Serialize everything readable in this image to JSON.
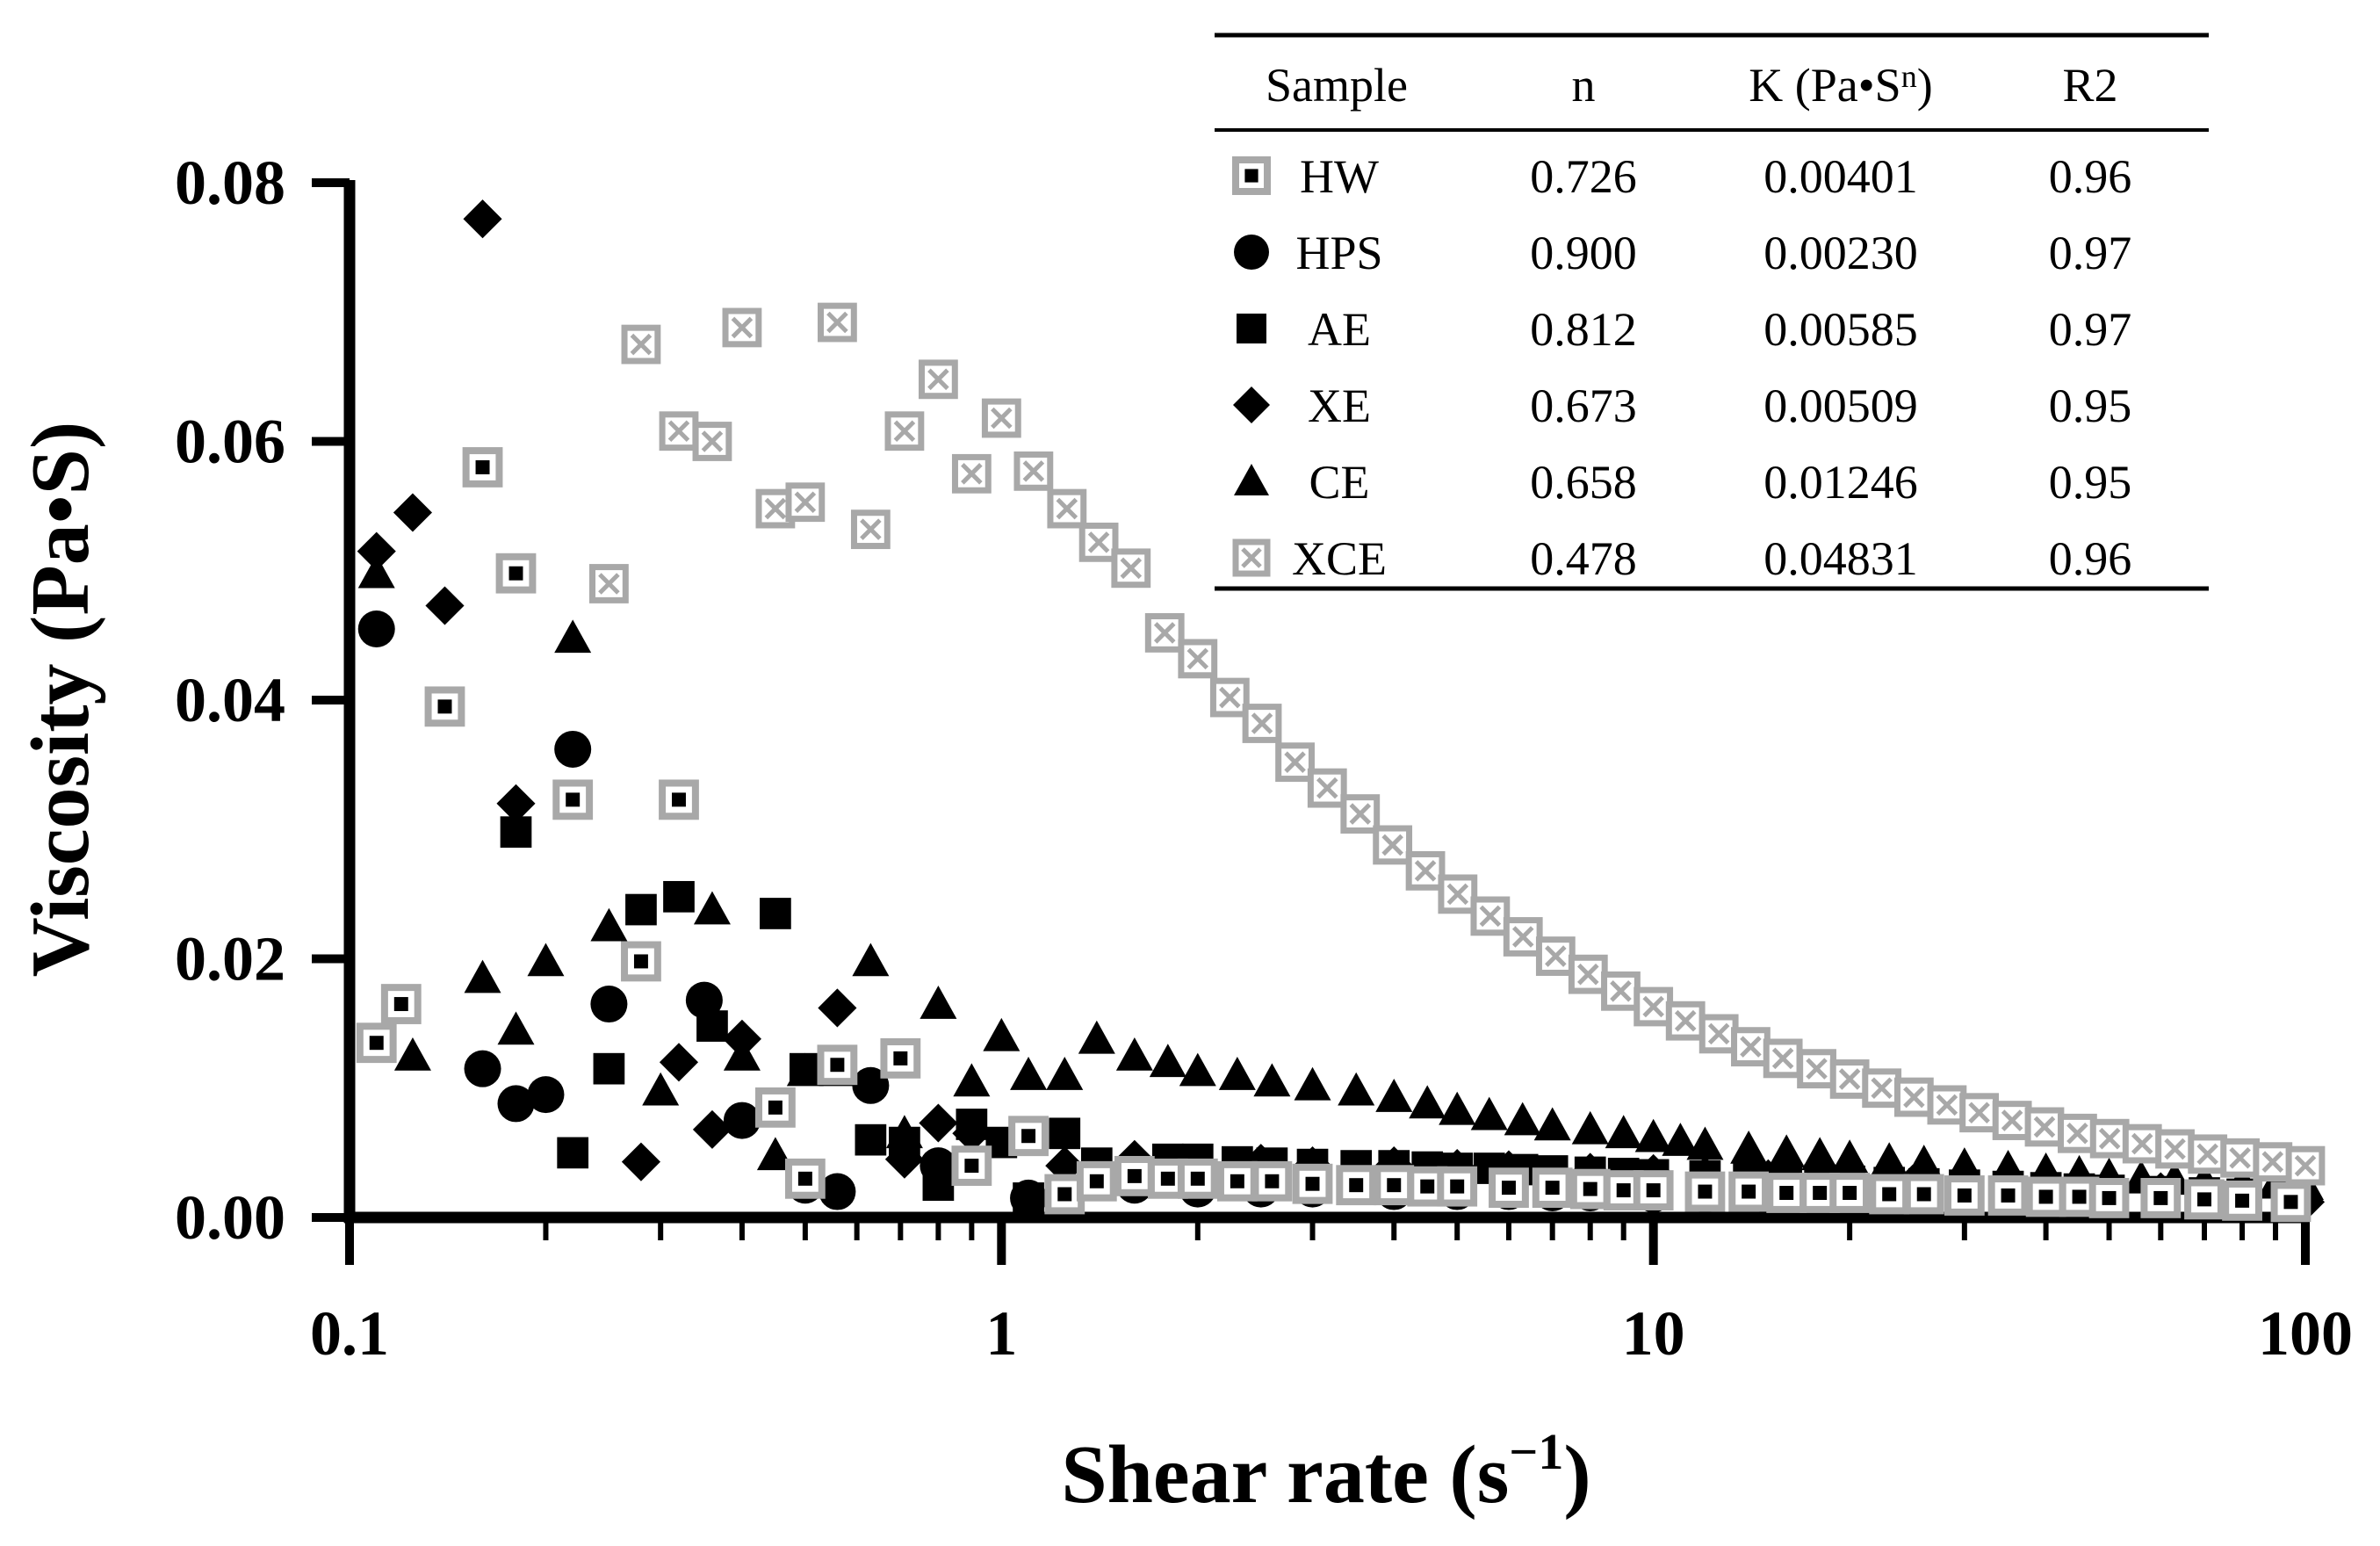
{
  "chart_data": {
    "type": "scatter",
    "title": "",
    "xlabel": "Shear rate (s",
    "xlabel_sup": "−1",
    "xlabel_close": ")",
    "ylabel": "Viscosity (Pa•S)",
    "xscale": "log",
    "xlim": [
      0.1,
      100
    ],
    "ylim": [
      0,
      0.08
    ],
    "xticks": [
      0.1,
      1,
      10,
      100
    ],
    "xtick_labels": [
      "0.1",
      "1",
      "10",
      "100"
    ],
    "yticks": [
      0,
      0.02,
      0.04,
      0.06,
      0.08
    ],
    "ytick_labels": [
      "0.00",
      "0.02",
      "0.04",
      "0.06",
      "0.08"
    ],
    "grid": false,
    "legend_table": {
      "headers": [
        "Sample",
        "n",
        "K (Pa•S",
        "R2"
      ],
      "header_k_sup": "n",
      "rows": [
        {
          "sample": "HW",
          "n": "0.726",
          "K": "0.00401",
          "R2": "0.96"
        },
        {
          "sample": "HPS",
          "n": "0.900",
          "K": "0.00230",
          "R2": "0.97"
        },
        {
          "sample": "AE",
          "n": "0.812",
          "K": "0.00585",
          "R2": "0.97"
        },
        {
          "sample": "XE",
          "n": "0.673",
          "K": "0.00509",
          "R2": "0.95"
        },
        {
          "sample": "CE",
          "n": "0.658",
          "K": "0.01246",
          "R2": "0.95"
        },
        {
          "sample": "XCE",
          "n": "0.478",
          "K": "0.04831",
          "R2": "0.96"
        }
      ]
    },
    "series": [
      {
        "name": "HW",
        "marker": "hw",
        "x": [
          0.11,
          0.12,
          0.14,
          0.16,
          0.18,
          0.22,
          0.28,
          0.32,
          0.45,
          0.5,
          0.56,
          0.7,
          0.9,
          1.1,
          1.25,
          1.4,
          1.6,
          1.8,
          2,
          2.3,
          2.6,
          3,
          3.5,
          4,
          4.5,
          5,
          6,
          7,
          8,
          9,
          10,
          12,
          14,
          16,
          18,
          20,
          23,
          26,
          30,
          35,
          40,
          45,
          50,
          60,
          70,
          80,
          95
        ],
        "y": [
          0.0135,
          0.0165,
          0.0395,
          0.058,
          0.0498,
          0.0323,
          0.0198,
          0.0323,
          0.0085,
          0.003,
          0.0118,
          0.0123,
          0.004,
          0.0063,
          0.0018,
          0.0028,
          0.0032,
          0.003,
          0.003,
          0.0028,
          0.0028,
          0.0026,
          0.0025,
          0.0025,
          0.0024,
          0.0024,
          0.0023,
          0.0023,
          0.0022,
          0.0021,
          0.0021,
          0.002,
          0.002,
          0.0019,
          0.0019,
          0.0019,
          0.0018,
          0.0018,
          0.0017,
          0.0017,
          0.0016,
          0.0016,
          0.0015,
          0.0015,
          0.0014,
          0.0013,
          0.0012
        ]
      },
      {
        "name": "HPS",
        "marker": "circle",
        "x": [
          0.11,
          0.16,
          0.18,
          0.2,
          0.22,
          0.25,
          0.35,
          0.4,
          0.5,
          0.56,
          0.63,
          0.8,
          1.1,
          1.6,
          2,
          2.5,
          3,
          4,
          5,
          6,
          7,
          8,
          10,
          12,
          15,
          20,
          25,
          30,
          40,
          50,
          60,
          80,
          95
        ],
        "y": [
          0.0455,
          0.0115,
          0.0088,
          0.0095,
          0.0362,
          0.0165,
          0.0168,
          0.0075,
          0.0025,
          0.002,
          0.0102,
          0.004,
          0.0015,
          0.0025,
          0.0022,
          0.0022,
          0.0022,
          0.002,
          0.002,
          0.002,
          0.0019,
          0.0019,
          0.0018,
          0.0018,
          0.0017,
          0.0016,
          0.0016,
          0.0015,
          0.0015,
          0.0014,
          0.0014,
          0.0013,
          0.0012
        ]
      },
      {
        "name": "AE",
        "marker": "square",
        "x": [
          0.18,
          0.22,
          0.25,
          0.28,
          0.32,
          0.36,
          0.45,
          0.5,
          0.63,
          0.71,
          0.8,
          0.9,
          1,
          1.1,
          1.25,
          1.4,
          1.6,
          1.8,
          2,
          2.3,
          2.6,
          3,
          3.5,
          4,
          4.5,
          5,
          5.6,
          6.3,
          7,
          8,
          9,
          10,
          12,
          14,
          16,
          18,
          20,
          23,
          26,
          30,
          35,
          40,
          45,
          50,
          60,
          70,
          80,
          95
        ],
        "y": [
          0.0298,
          0.005,
          0.0115,
          0.0238,
          0.0248,
          0.0148,
          0.0235,
          0.0115,
          0.006,
          0.0058,
          0.0025,
          0.0072,
          0.0058,
          0.0015,
          0.0065,
          0.0042,
          0.0035,
          0.0045,
          0.0045,
          0.0043,
          0.0042,
          0.0041,
          0.004,
          0.004,
          0.0039,
          0.0038,
          0.0038,
          0.0037,
          0.0036,
          0.0035,
          0.0034,
          0.0033,
          0.0032,
          0.0031,
          0.003,
          0.0029,
          0.0028,
          0.0027,
          0.0026,
          0.0025,
          0.0024,
          0.0023,
          0.0022,
          0.0021,
          0.002,
          0.0019,
          0.0018,
          0.0017
        ]
      },
      {
        "name": "XE",
        "marker": "diamond",
        "x": [
          0.11,
          0.125,
          0.14,
          0.16,
          0.18,
          0.28,
          0.32,
          0.36,
          0.4,
          0.56,
          0.71,
          0.8,
          0.9,
          1.25,
          1.6,
          2,
          2.5,
          3,
          4,
          5,
          6,
          8,
          10,
          12,
          15,
          20,
          25,
          30,
          40,
          50,
          60,
          80,
          100
        ],
        "y": [
          0.0515,
          0.0545,
          0.0473,
          0.0772,
          0.032,
          0.0043,
          0.012,
          0.0068,
          0.0138,
          0.0162,
          0.0045,
          0.0073,
          0.0065,
          0.004,
          0.0045,
          0.0042,
          0.0042,
          0.004,
          0.004,
          0.0038,
          0.0037,
          0.0035,
          0.0034,
          0.0032,
          0.003,
          0.0028,
          0.0026,
          0.0025,
          0.0023,
          0.0021,
          0.002,
          0.0018,
          0.0012
        ]
      },
      {
        "name": "CE",
        "marker": "triangle",
        "x": [
          0.11,
          0.125,
          0.16,
          0.18,
          0.2,
          0.22,
          0.25,
          0.3,
          0.36,
          0.4,
          0.45,
          0.5,
          0.56,
          0.63,
          0.71,
          0.8,
          0.9,
          1,
          1.1,
          1.25,
          1.4,
          1.6,
          1.8,
          2,
          2.3,
          2.6,
          3,
          3.5,
          4,
          4.5,
          5,
          5.6,
          6.3,
          7,
          8,
          9,
          10,
          11,
          12,
          14,
          16,
          18,
          20,
          23,
          26,
          30,
          35,
          40,
          45,
          50,
          56,
          63,
          70,
          80,
          90,
          100
        ],
        "y": [
          0.0498,
          0.0125,
          0.0185,
          0.0145,
          0.0198,
          0.0448,
          0.0225,
          0.0098,
          0.0238,
          0.0125,
          0.0048,
          0.0113,
          0.0113,
          0.0198,
          0.0065,
          0.0165,
          0.0105,
          0.014,
          0.011,
          0.011,
          0.0138,
          0.0125,
          0.012,
          0.0113,
          0.011,
          0.0105,
          0.0102,
          0.0098,
          0.0093,
          0.0088,
          0.0083,
          0.0079,
          0.0075,
          0.0071,
          0.0068,
          0.0065,
          0.0062,
          0.0059,
          0.0056,
          0.0053,
          0.005,
          0.0048,
          0.0046,
          0.0044,
          0.0042,
          0.004,
          0.0038,
          0.0036,
          0.0034,
          0.0032,
          0.003,
          0.0029,
          0.0028,
          0.0027,
          0.0026,
          0.0025
        ]
      },
      {
        "name": "XCE",
        "marker": "xsquare",
        "x": [
          0.25,
          0.28,
          0.32,
          0.36,
          0.4,
          0.45,
          0.5,
          0.56,
          0.63,
          0.71,
          0.8,
          0.9,
          1,
          1.12,
          1.26,
          1.41,
          1.58,
          1.78,
          2,
          2.24,
          2.51,
          2.82,
          3.16,
          3.55,
          3.98,
          4.47,
          5.01,
          5.62,
          6.31,
          7.08,
          7.94,
          8.91,
          10,
          11.2,
          12.6,
          14.1,
          15.8,
          17.8,
          20,
          22.4,
          25.1,
          28.2,
          31.6,
          35.5,
          39.8,
          44.7,
          50.1,
          56.2,
          63.1,
          70.8,
          79.4,
          89.1,
          100
        ],
        "y": [
          0.049,
          0.0675,
          0.0608,
          0.06,
          0.0688,
          0.0548,
          0.0553,
          0.0692,
          0.0532,
          0.0608,
          0.0648,
          0.0575,
          0.0618,
          0.0577,
          0.0548,
          0.0522,
          0.0502,
          0.0452,
          0.0432,
          0.0402,
          0.0382,
          0.0352,
          0.0332,
          0.0312,
          0.0288,
          0.0268,
          0.025,
          0.0233,
          0.0217,
          0.0202,
          0.0188,
          0.0175,
          0.0163,
          0.0152,
          0.0142,
          0.0132,
          0.0123,
          0.0115,
          0.0107,
          0.01,
          0.0093,
          0.0087,
          0.0081,
          0.0075,
          0.007,
          0.0065,
          0.0061,
          0.0057,
          0.0053,
          0.0049,
          0.0046,
          0.0043,
          0.004
        ]
      }
    ]
  }
}
